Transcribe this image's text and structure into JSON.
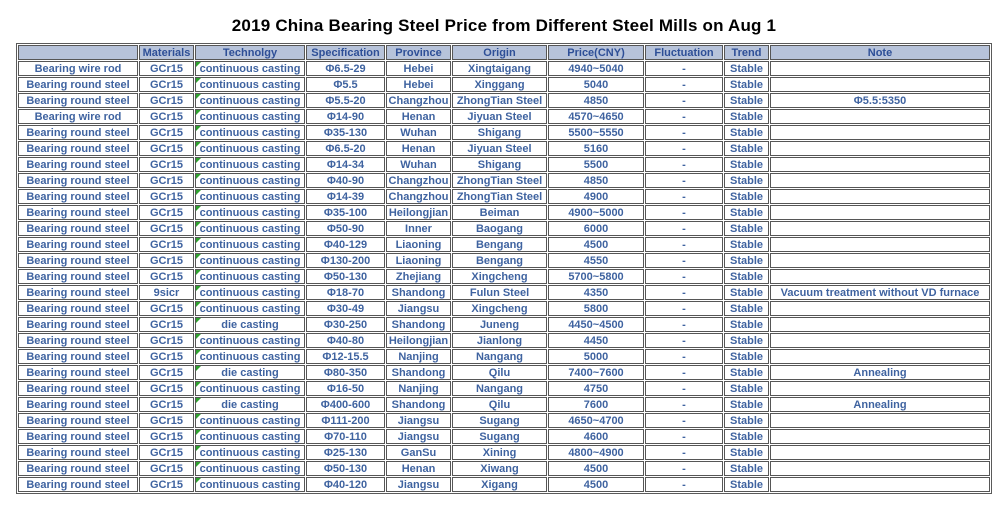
{
  "title": "2019 China Bearing Steel Price from Different Steel Mills on Aug 1",
  "colors": {
    "header_bg": "#b7c3da",
    "header_text": "#2e4f97",
    "cell_text": "#3f63a0",
    "grid_border": "#565656",
    "error_indicator_green": "#2fa12f"
  },
  "icons": {
    "error_indicator": "green-corner-triangle-icon"
  },
  "table": {
    "columns": [
      "",
      "Materials",
      "Technolgy",
      "Specification",
      "Province",
      "Origin",
      "Price(CNY)",
      "Fluctuation",
      "Trend",
      "Note"
    ],
    "rows": [
      [
        "Bearing wire rod",
        "GCr15",
        "continuous casting",
        "Φ6.5-29",
        "Hebei",
        "Xingtaigang",
        "4940~5040",
        "-",
        "Stable",
        ""
      ],
      [
        "Bearing round steel",
        "GCr15",
        "continuous casting",
        "Φ5.5",
        "Hebei",
        "Xinggang",
        "5040",
        "-",
        "Stable",
        ""
      ],
      [
        "Bearing round steel",
        "GCr15",
        "continuous casting",
        "Φ5.5-20",
        "Changzhou",
        "ZhongTian Steel",
        "4850",
        "-",
        "Stable",
        "Φ5.5:5350"
      ],
      [
        "Bearing wire rod",
        "GCr15",
        "continuous casting",
        "Φ14-90",
        "Henan",
        "Jiyuan Steel",
        "4570~4650",
        "-",
        "Stable",
        ""
      ],
      [
        "Bearing round steel",
        "GCr15",
        "continuous casting",
        "Φ35-130",
        "Wuhan",
        "Shigang",
        "5500~5550",
        "-",
        "Stable",
        ""
      ],
      [
        "Bearing round steel",
        "GCr15",
        "continuous casting",
        "Φ6.5-20",
        "Henan",
        "Jiyuan Steel",
        "5160",
        "-",
        "Stable",
        ""
      ],
      [
        "Bearing round steel",
        "GCr15",
        "continuous casting",
        "Φ14-34",
        "Wuhan",
        "Shigang",
        "5500",
        "-",
        "Stable",
        ""
      ],
      [
        "Bearing round steel",
        "GCr15",
        "continuous casting",
        "Φ40-90",
        "Changzhou",
        "ZhongTian Steel",
        "4850",
        "-",
        "Stable",
        ""
      ],
      [
        "Bearing round steel",
        "GCr15",
        "continuous casting",
        "Φ14-39",
        "Changzhou",
        "ZhongTian Steel",
        "4900",
        "-",
        "Stable",
        ""
      ],
      [
        "Bearing round steel",
        "GCr15",
        "continuous casting",
        "Φ35-100",
        "Heilongjian",
        "Beiman",
        "4900~5000",
        "-",
        "Stable",
        ""
      ],
      [
        "Bearing round steel",
        "GCr15",
        "continuous casting",
        "Φ50-90",
        "Inner",
        "Baogang",
        "6000",
        "-",
        "Stable",
        ""
      ],
      [
        "Bearing round steel",
        "GCr15",
        "continuous casting",
        "Φ40-129",
        "Liaoning",
        "Bengang",
        "4500",
        "-",
        "Stable",
        ""
      ],
      [
        "Bearing round steel",
        "GCr15",
        "continuous casting",
        "Φ130-200",
        "Liaoning",
        "Bengang",
        "4550",
        "-",
        "Stable",
        ""
      ],
      [
        "Bearing round steel",
        "GCr15",
        "continuous casting",
        "Φ50-130",
        "Zhejiang",
        "Xingcheng",
        "5700~5800",
        "-",
        "Stable",
        ""
      ],
      [
        "Bearing round steel",
        "9sicr",
        "continuous casting",
        "Φ18-70",
        "Shandong",
        "Fulun Steel",
        "4350",
        "-",
        "Stable",
        "Vacuum treatment without VD furnace"
      ],
      [
        "Bearing round steel",
        "GCr15",
        "continuous casting",
        "Φ30-49",
        "Jiangsu",
        "Xingcheng",
        "5800",
        "-",
        "Stable",
        ""
      ],
      [
        "Bearing round steel",
        "GCr15",
        "die casting",
        "Φ30-250",
        "Shandong",
        "Juneng",
        "4450~4500",
        "-",
        "Stable",
        ""
      ],
      [
        "Bearing round steel",
        "GCr15",
        "continuous casting",
        "Φ40-80",
        "Heilongjian",
        "Jianlong",
        "4450",
        "-",
        "Stable",
        ""
      ],
      [
        "Bearing round steel",
        "GCr15",
        "continuous casting",
        "Φ12-15.5",
        "Nanjing",
        "Nangang",
        "5000",
        "-",
        "Stable",
        ""
      ],
      [
        "Bearing round steel",
        "GCr15",
        "die casting",
        "Φ80-350",
        "Shandong",
        "Qilu",
        "7400~7600",
        "-",
        "Stable",
        "Annealing"
      ],
      [
        "Bearing round steel",
        "GCr15",
        "continuous casting",
        "Φ16-50",
        "Nanjing",
        "Nangang",
        "4750",
        "-",
        "Stable",
        ""
      ],
      [
        "Bearing round steel",
        "GCr15",
        "die casting",
        "Φ400-600",
        "Shandong",
        "Qilu",
        "7600",
        "-",
        "Stable",
        "Annealing"
      ],
      [
        "Bearing round steel",
        "GCr15",
        "continuous casting",
        "Φ111-200",
        "Jiangsu",
        "Sugang",
        "4650~4700",
        "-",
        "Stable",
        ""
      ],
      [
        "Bearing round steel",
        "GCr15",
        "continuous casting",
        "Φ70-110",
        "Jiangsu",
        "Sugang",
        "4600",
        "-",
        "Stable",
        ""
      ],
      [
        "Bearing round steel",
        "GCr15",
        "continuous casting",
        "Φ25-130",
        "GanSu",
        "Xining",
        "4800~4900",
        "-",
        "Stable",
        ""
      ],
      [
        "Bearing round steel",
        "GCr15",
        "continuous casting",
        "Φ50-130",
        "Henan",
        "Xiwang",
        "4500",
        "-",
        "Stable",
        ""
      ],
      [
        "Bearing round steel",
        "GCr15",
        "continuous casting",
        "Φ40-120",
        "Jiangsu",
        "Xigang",
        "4500",
        "-",
        "Stable",
        ""
      ]
    ]
  }
}
